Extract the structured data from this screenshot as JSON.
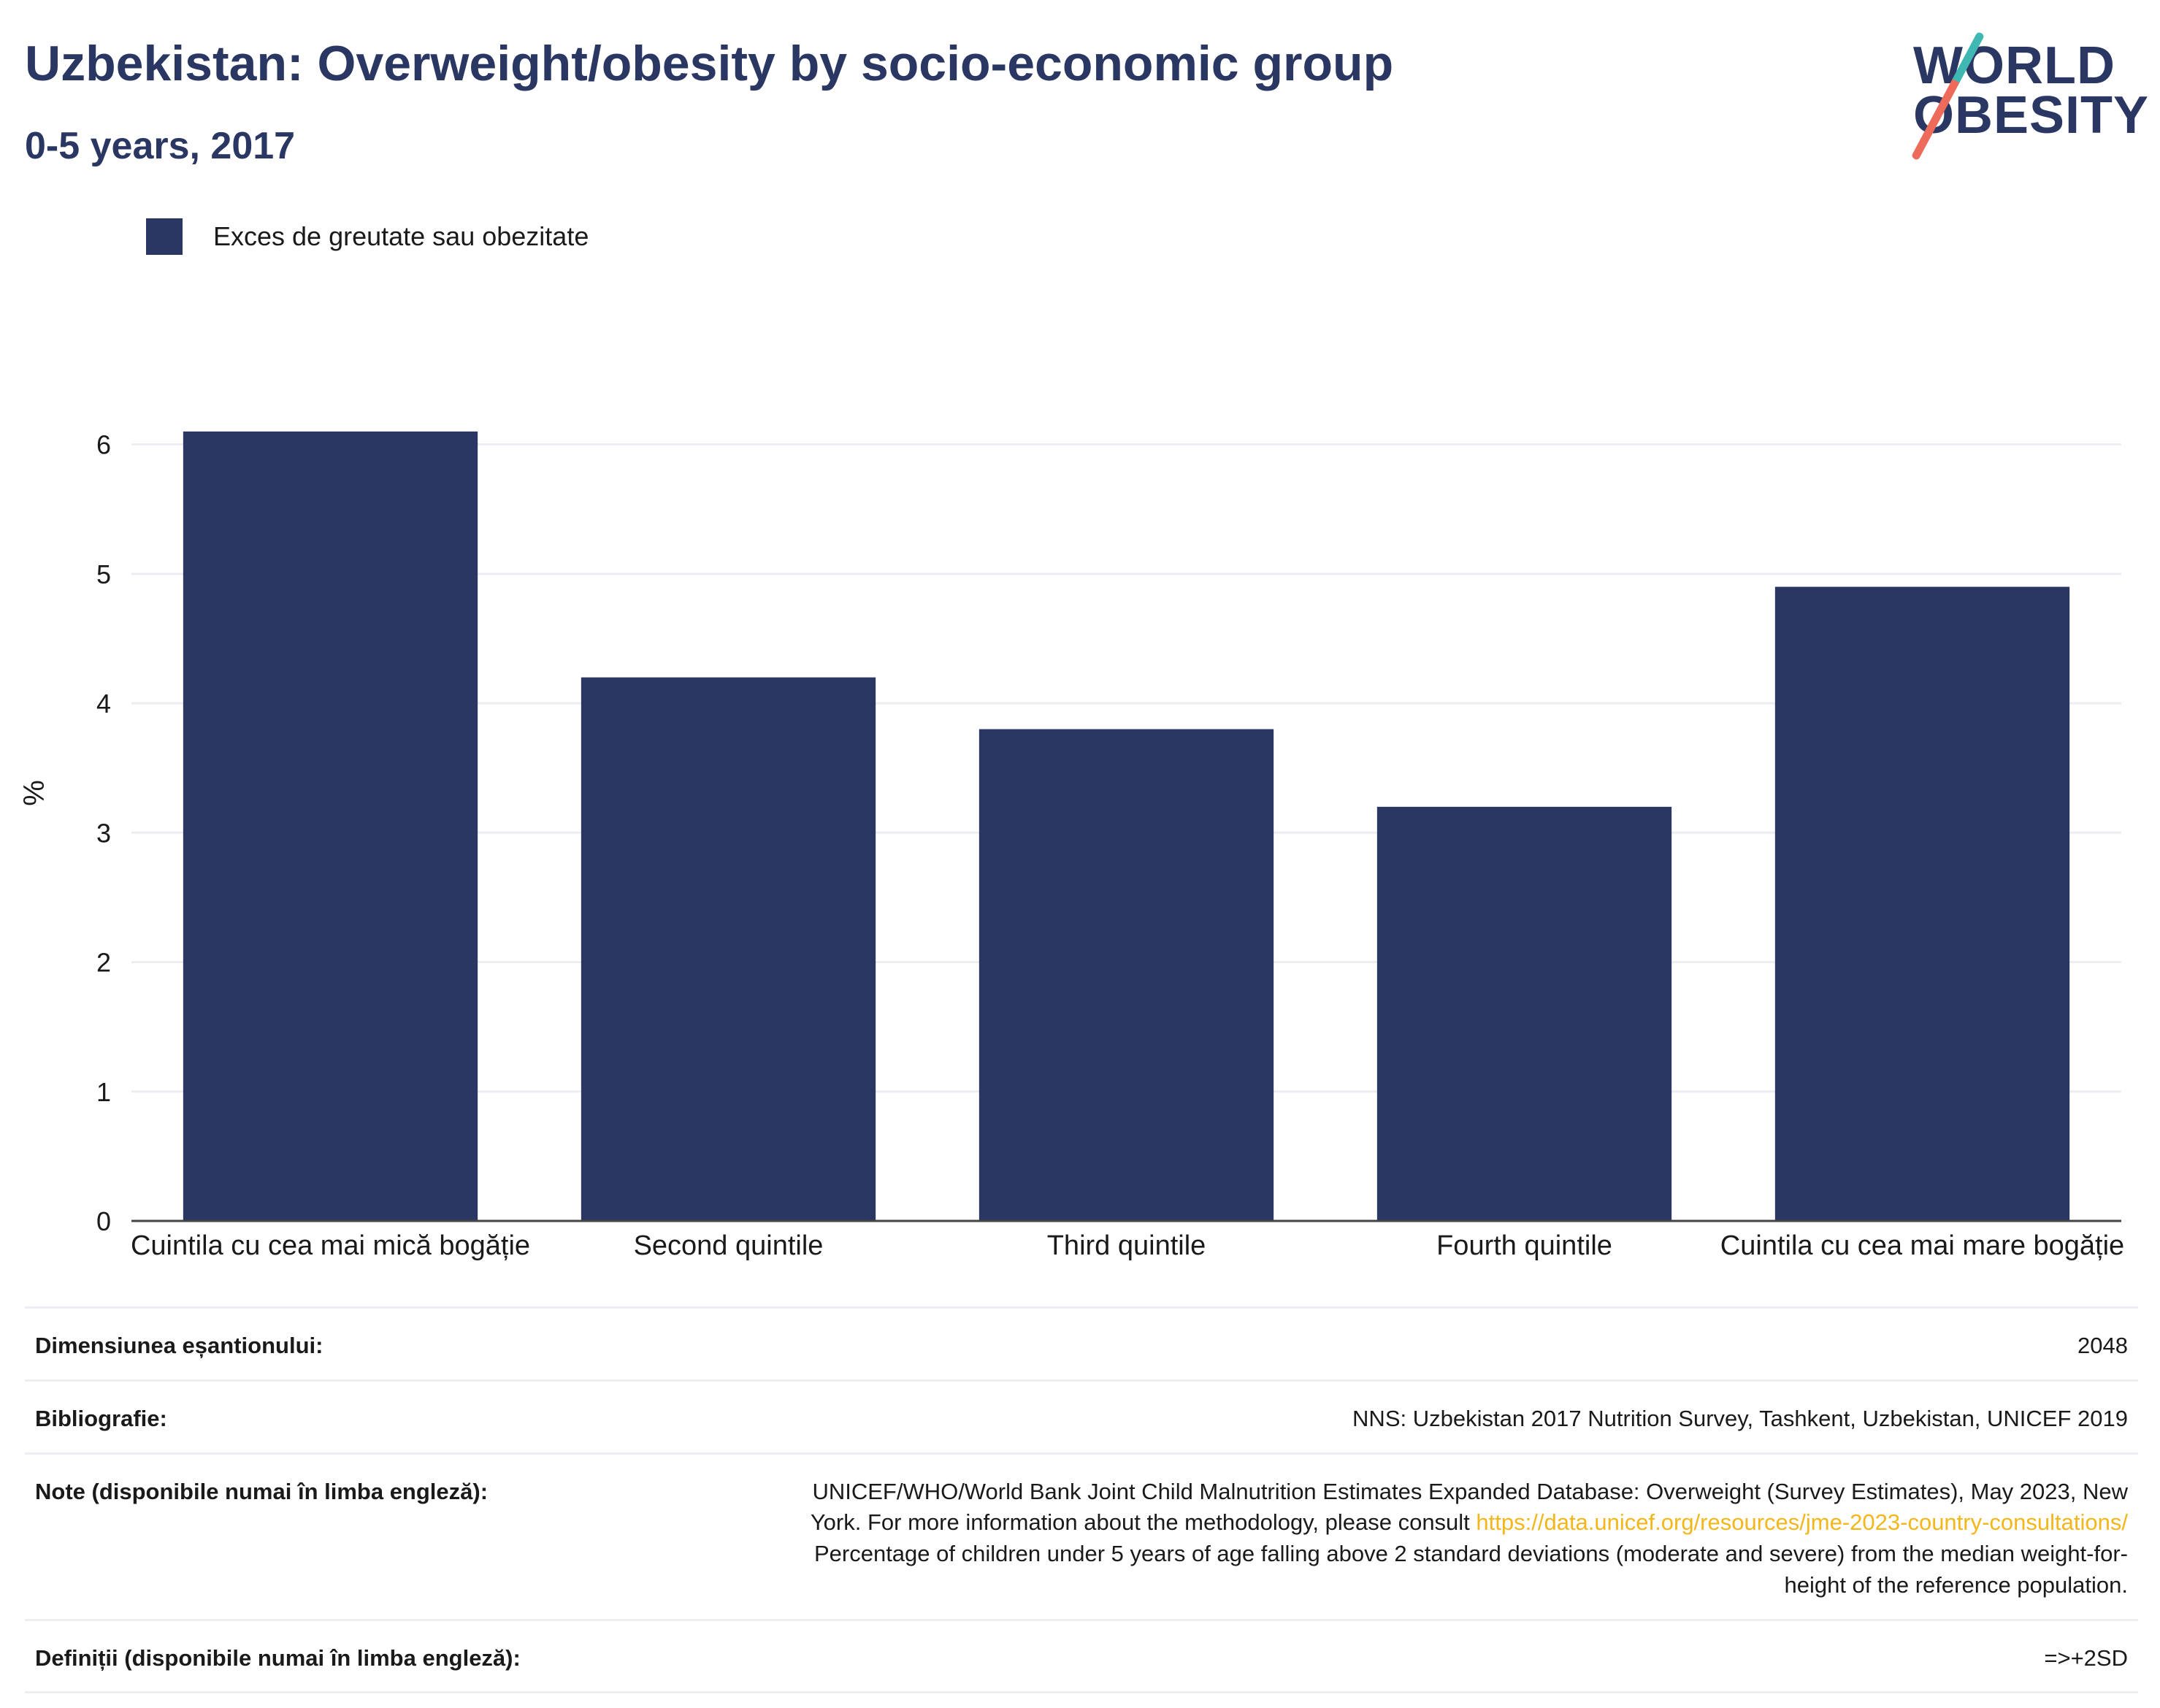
{
  "header": {
    "title": "Uzbekistan: Overweight/obesity by socio-economic group",
    "subtitle": "0-5 years, 2017"
  },
  "logo": {
    "line1": "WORLD",
    "line2": "OBESITY"
  },
  "colors": {
    "bar": "#2b3763",
    "title": "#2b3763",
    "gridline": "#eceef2",
    "link": "#f4b619"
  },
  "chart_data": {
    "type": "bar",
    "categories": [
      "Cuintila cu cea mai mică bogăție",
      "Second quintile",
      "Third quintile",
      "Fourth quintile",
      "Cuintila cu cea mai mare bogăție"
    ],
    "series": [
      {
        "name": "Exces de greutate sau obezitate",
        "values": [
          6.1,
          4.2,
          3.8,
          3.2,
          4.9
        ]
      }
    ],
    "ylabel": "%",
    "ylim": [
      0,
      6.5
    ],
    "yticks": [
      0,
      1,
      2,
      3,
      4,
      5,
      6
    ],
    "grid": true,
    "legend": "top-left"
  },
  "info": {
    "sample": {
      "label": "Dimensiunea eșantionului:",
      "value": "2048"
    },
    "biblio": {
      "label": "Bibliografie:",
      "value": "NNS: Uzbekistan 2017 Nutrition Survey, Tashkent, Uzbekistan, UNICEF 2019"
    },
    "notes": {
      "label": "Note (disponibile numai în limba engleză):",
      "line1": "UNICEF/WHO/World Bank Joint Child Malnutrition Estimates Expanded Database: Overweight (Survey Estimates), May 2023, New",
      "line2_prefix": "York. For more information about the methodology, please consult ",
      "link": "https://data.unicef.org/resources/jme-2023-country-consultations/",
      "line3": "Percentage of children under 5 years of age falling above 2 standard deviations (moderate and severe) from the median weight-for-",
      "line4": "height of the reference population."
    },
    "definitions": {
      "label": "Definiții (disponibile numai în limba engleză):",
      "value": "=>+2SD"
    }
  }
}
